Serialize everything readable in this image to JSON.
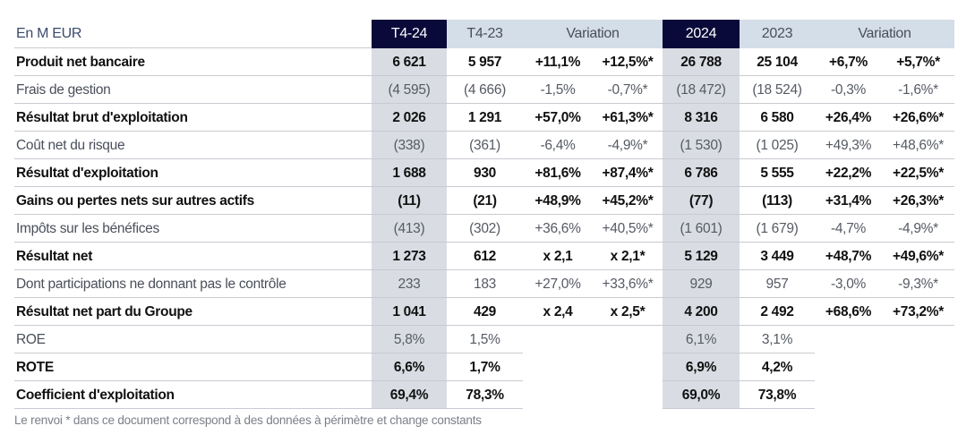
{
  "header": {
    "unit_label": "En M EUR",
    "col_q_current": "T4-24",
    "col_q_prior": "T4-23",
    "col_q_variation": "Variation",
    "col_y_current": "2024",
    "col_y_prior": "2023",
    "col_y_variation": "Variation"
  },
  "rows": [
    {
      "label": "Produit net bancaire",
      "style": "bold",
      "q24": "6 621",
      "q23": "5 957",
      "qv": "+11,1%",
      "qvc": "+12,5%*",
      "y24": "26 788",
      "y23": "25 104",
      "yv": "+6,7%",
      "yvc": "+5,7%*"
    },
    {
      "label": "Frais de gestion",
      "style": "light",
      "q24": "(4 595)",
      "q23": "(4 666)",
      "qv": "-1,5%",
      "qvc": "-0,7%*",
      "y24": "(18 472)",
      "y23": "(18 524)",
      "yv": "-0,3%",
      "yvc": "-1,6%*"
    },
    {
      "label": "Résultat brut d'exploitation",
      "style": "bold",
      "q24": "2 026",
      "q23": "1 291",
      "qv": "+57,0%",
      "qvc": "+61,3%*",
      "y24": "8 316",
      "y23": "6 580",
      "yv": "+26,4%",
      "yvc": "+26,6%*"
    },
    {
      "label": "Coût net du risque",
      "style": "light",
      "q24": "(338)",
      "q23": "(361)",
      "qv": "-6,4%",
      "qvc": "-4,9%*",
      "y24": "(1 530)",
      "y23": "(1 025)",
      "yv": "+49,3%",
      "yvc": "+48,6%*"
    },
    {
      "label": "Résultat d'exploitation",
      "style": "bold",
      "q24": "1 688",
      "q23": "930",
      "qv": "+81,6%",
      "qvc": "+87,4%*",
      "y24": "6 786",
      "y23": "5 555",
      "yv": "+22,2%",
      "yvc": "+22,5%*"
    },
    {
      "label": "Gains ou pertes nets sur autres actifs",
      "style": "bold",
      "q24": "(11)",
      "q23": "(21)",
      "qv": "+48,9%",
      "qvc": "+45,2%*",
      "y24": "(77)",
      "y23": "(113)",
      "yv": "+31,4%",
      "yvc": "+26,3%*"
    },
    {
      "label": "Impôts sur les bénéfices",
      "style": "light",
      "q24": "(413)",
      "q23": "(302)",
      "qv": "+36,6%",
      "qvc": "+40,5%*",
      "y24": "(1 601)",
      "y23": "(1 679)",
      "yv": "-4,7%",
      "yvc": "-4,9%*"
    },
    {
      "label": "Résultat net",
      "style": "bold",
      "q24": "1 273",
      "q23": "612",
      "qv": "x 2,1",
      "qvc": "x 2,1*",
      "y24": "5 129",
      "y23": "3 449",
      "yv": "+48,7%",
      "yvc": "+49,6%*"
    },
    {
      "label": "Dont participations ne donnant pas le contrôle",
      "style": "light",
      "q24": "233",
      "q23": "183",
      "qv": "+27,0%",
      "qvc": "+33,6%*",
      "y24": "929",
      "y23": "957",
      "yv": "-3,0%",
      "yvc": "-9,3%*"
    },
    {
      "label": "Résultat net part du Groupe",
      "style": "bold",
      "q24": "1 041",
      "q23": "429",
      "qv": "x 2,4",
      "qvc": "x 2,5*",
      "y24": "4 200",
      "y23": "2 492",
      "yv": "+68,6%",
      "yvc": "+73,2%*"
    }
  ],
  "ratio_rows": [
    {
      "label": "ROE",
      "style": "light",
      "q24": "5,8%",
      "q23": "1,5%",
      "y24": "6,1%",
      "y23": "3,1%"
    },
    {
      "label": "ROTE",
      "style": "bold",
      "q24": "6,6%",
      "q23": "1,7%",
      "y24": "6,9%",
      "y23": "4,2%"
    },
    {
      "label": "Coefficient d'exploitation",
      "style": "bold",
      "q24": "69,4%",
      "q23": "78,3%",
      "y24": "69,0%",
      "y23": "73,8%"
    }
  ],
  "footnote": "Le renvoi * dans ce document correspond à des données à périmètre et change constants",
  "colors": {
    "dark_header": "#0a0a3a",
    "light_header": "#d4dee9",
    "shaded_column": "#d9dde3",
    "row_rule": "#c7cbd1"
  }
}
